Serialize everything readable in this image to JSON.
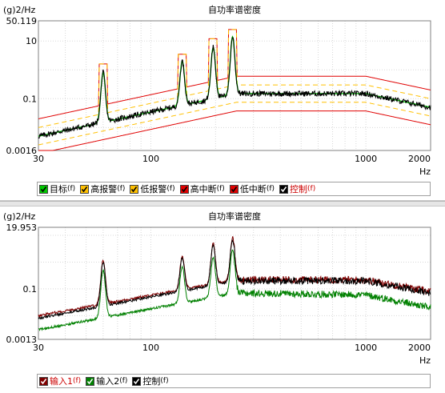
{
  "chart_data": [
    {
      "type": "line",
      "title": "自功率谱密度",
      "ylabel": "(g)2/Hz",
      "xlabel": "Hz",
      "xscale": "log",
      "yscale": "log",
      "xlim": [
        30,
        2000
      ],
      "ylim": [
        0.0016,
        50.119
      ],
      "y_top_label": "50.119",
      "y_tick_labels": [
        {
          "value": 10,
          "label": "10"
        },
        {
          "value": 0.1,
          "label": "0.1"
        },
        {
          "value": 0.0016,
          "label": "0.0016"
        }
      ],
      "x_tick_labels": [
        {
          "value": 30,
          "label": "30"
        },
        {
          "value": 100,
          "label": "100"
        },
        {
          "value": 1000,
          "label": "1000"
        },
        {
          "value": 2000,
          "label": "2000"
        }
      ],
      "grid": true,
      "legend": {
        "placement": "bottom",
        "items": [
          {
            "name": "目标",
            "suffix": "(f)",
            "color": "#00c800",
            "text_color": "#000000"
          },
          {
            "name": "高报警",
            "suffix": "(f)",
            "color": "#ffc000",
            "text_color": "#000000"
          },
          {
            "name": "低报警",
            "suffix": "(f)",
            "color": "#ffc000",
            "text_color": "#000000"
          },
          {
            "name": "高中断",
            "suffix": "(f)",
            "color": "#e00000",
            "text_color": "#000000"
          },
          {
            "name": "低中断",
            "suffix": "(f)",
            "color": "#e00000",
            "text_color": "#000000"
          },
          {
            "name": "控制",
            "suffix": "(f)",
            "color": "#000000",
            "text_color": "#cc0000"
          }
        ]
      },
      "breakpoints": {
        "x": [
          30,
          250,
          1000,
          2000
        ],
        "target": [
          0.005,
          0.15,
          0.15,
          0.05
        ],
        "high_alarm": [
          0.01,
          0.3,
          0.3,
          0.1
        ],
        "low_alarm": [
          0.0025,
          0.075,
          0.075,
          0.025
        ],
        "high_abort": [
          0.02,
          0.6,
          0.6,
          0.2
        ],
        "low_abort": [
          0.00125,
          0.0375,
          0.0375,
          0.0125
        ]
      },
      "peaks": [
        {
          "x": 60,
          "target": 0.8,
          "high_alarm": 1.6,
          "high_abort": 1.6
        },
        {
          "x": 140,
          "target": 2.0,
          "high_alarm": 3.5,
          "high_abort": 3.5
        },
        {
          "x": 195,
          "target": 6.0,
          "high_alarm": 12.0,
          "high_abort": 12.0
        },
        {
          "x": 240,
          "target": 14.0,
          "high_alarm": 25.0,
          "high_abort": 25.0
        }
      ],
      "series_colors": {
        "target": "#00c800",
        "alarm": "#ffc000",
        "abort": "#e00000",
        "control": "#000000"
      }
    },
    {
      "type": "line",
      "title": "自功率谱密度",
      "ylabel": "(g)2/Hz",
      "xlabel": "Hz",
      "xscale": "log",
      "yscale": "log",
      "xlim": [
        30,
        2000
      ],
      "ylim": [
        0.0013,
        19.953
      ],
      "y_top_label": "19.953",
      "y_tick_labels": [
        {
          "value": 0.1,
          "label": "0.1"
        },
        {
          "value": 0.0013,
          "label": "0.0013"
        }
      ],
      "x_tick_labels": [
        {
          "value": 30,
          "label": "30"
        },
        {
          "value": 100,
          "label": "100"
        },
        {
          "value": 1000,
          "label": "1000"
        },
        {
          "value": 2000,
          "label": "2000"
        }
      ],
      "grid": true,
      "legend": {
        "placement": "bottom",
        "items": [
          {
            "name": "输入1",
            "suffix": "(f)",
            "color": "#800000",
            "text_color": "#cc0000"
          },
          {
            "name": "输入2",
            "suffix": "(f)",
            "color": "#008000",
            "text_color": "#000000"
          },
          {
            "name": "控制",
            "suffix": "(f)",
            "color": "#000000",
            "text_color": "#000000"
          }
        ]
      },
      "base_levels": {
        "x": [
          30,
          250,
          1000,
          2000
        ],
        "input1": [
          0.01,
          0.22,
          0.22,
          0.08
        ],
        "input2": [
          0.003,
          0.07,
          0.06,
          0.02
        ],
        "control": [
          0.008,
          0.2,
          0.2,
          0.07
        ]
      },
      "peaks": [
        {
          "x": 60,
          "input1": 1.2,
          "input2": 0.5,
          "control": 1.0
        },
        {
          "x": 140,
          "input1": 1.6,
          "input2": 0.7,
          "control": 1.4
        },
        {
          "x": 195,
          "input1": 5.0,
          "input2": 1.5,
          "control": 4.5
        },
        {
          "x": 240,
          "input1": 8.0,
          "input2": 3.0,
          "control": 7.0
        }
      ],
      "series_colors": {
        "input1": "#800000",
        "input2": "#008000",
        "control": "#000000"
      }
    }
  ]
}
